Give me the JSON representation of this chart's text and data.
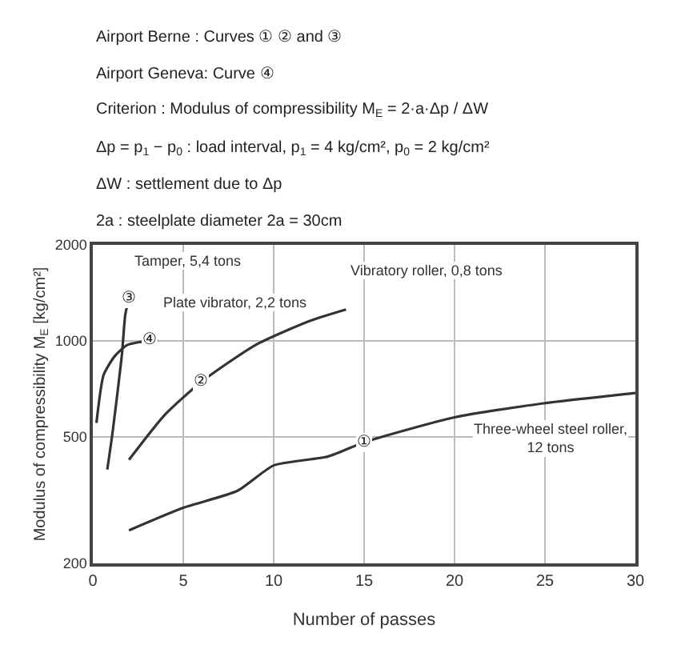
{
  "chart_data": {
    "type": "line",
    "xlabel": "Number of passes",
    "ylabel": "Modulus of compressibility M$_{E}$ [kg/cm²]",
    "annotations": [
      "Airport Berne : Curves ① ② and ③",
      "Airport Geneva: Curve ④",
      "Criterion : Modulus of compressibility M$_{E}$ = 2·a·Δp / ΔW",
      "Δp = p$_{1}$ − p$_{0}$ : load interval, p$_{1}$ = 4 kg/cm², p$_{0}$ = 2 kg/cm²",
      "ΔW : settlement due to Δp",
      "2a : steelplate diameter 2a = 30cm",
      {
        "text": "①",
        "x": 15,
        "y": 480
      },
      {
        "text": "②",
        "x": 6,
        "y": 740
      },
      {
        "text": "③",
        "x": 2.0,
        "y": 1350
      },
      {
        "text": "④",
        "x": 3.1,
        "y": 1000
      }
    ],
    "series": [
      {
        "name": "Three-wheel steel roller,\n12 tons",
        "color": "#333333",
        "x": [
          2,
          5,
          8,
          10,
          13,
          15,
          20,
          25,
          30
        ],
        "values": [
          254,
          299,
          338,
          406,
          433,
          480,
          575,
          637,
          685
        ]
      },
      {
        "name": "Vibratory roller, 0,8 tons",
        "color": "#333333",
        "x": [
          2,
          4,
          6,
          9,
          12,
          14
        ],
        "values": [
          423,
          587,
          743,
          970,
          1154,
          1253
        ]
      },
      {
        "name": "Tamper, 5,4 tons",
        "color": "#333333",
        "x": [
          0.8,
          1.1,
          1.6,
          1.8,
          2.0
        ],
        "values": [
          394,
          520,
          894,
          1214,
          1350
        ]
      },
      {
        "name": "Plate vibrator, 2,2 tons",
        "color": "#333333",
        "x": [
          0.2,
          0.6,
          1.2,
          1.9,
          3.1,
          3.6
        ],
        "values": [
          552,
          782,
          893,
          970,
          1000,
          1000
        ]
      }
    ],
    "xlim": [
      0,
      30
    ],
    "xticks": [
      0,
      5,
      10,
      15,
      20,
      25,
      30
    ],
    "ylim": [
      200,
      2000
    ],
    "yticks": [
      200,
      500,
      1000,
      2000
    ],
    "log": true,
    "grid": true,
    "line_style": "solid"
  }
}
